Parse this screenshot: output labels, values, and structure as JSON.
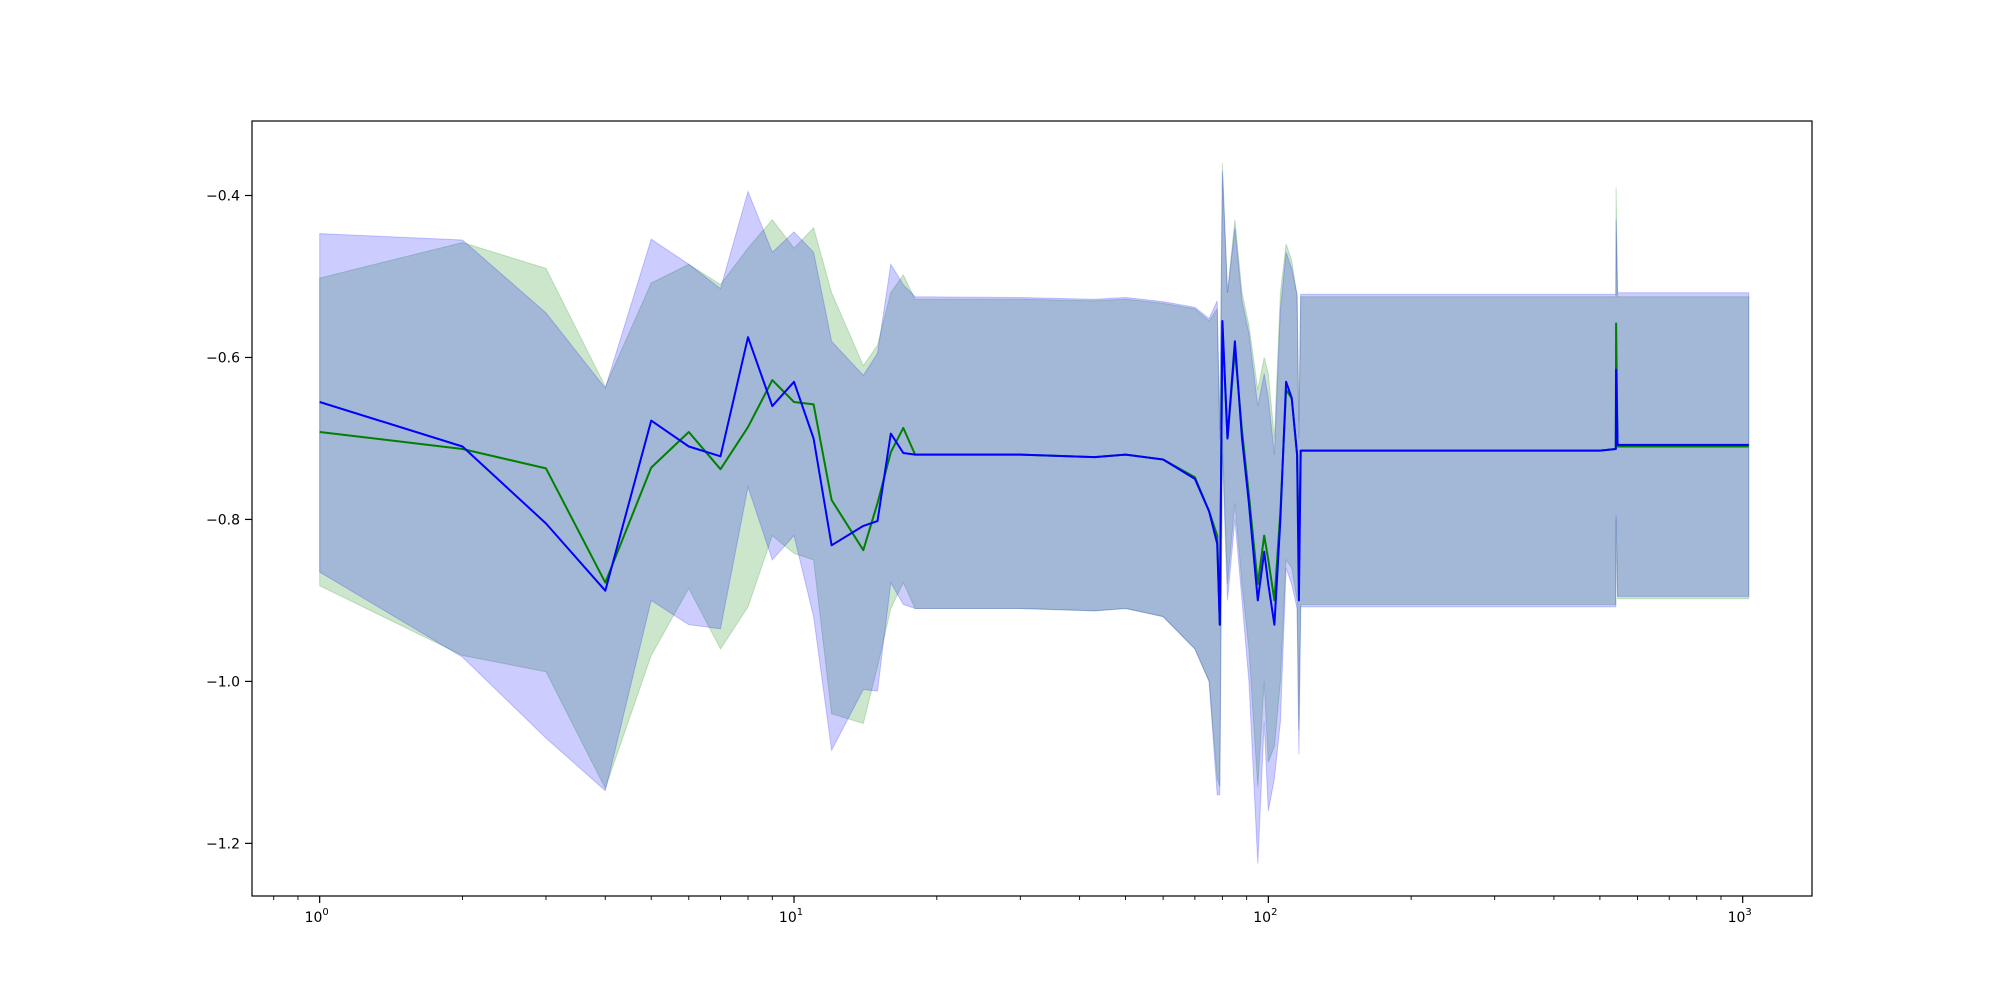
{
  "chart_data": {
    "type": "line",
    "title": "",
    "xlabel": "",
    "ylabel": "",
    "xscale": "log",
    "xlim": [
      0.72,
      1400
    ],
    "ylim": [
      -1.265,
      -0.308
    ],
    "grid": false,
    "legend": "none",
    "x_ticks": [
      {
        "base": "10",
        "exp": "0",
        "value": 1
      },
      {
        "base": "10",
        "exp": "1",
        "value": 10
      },
      {
        "base": "10",
        "exp": "2",
        "value": 100
      },
      {
        "base": "10",
        "exp": "3",
        "value": 1000
      }
    ],
    "y_ticks": [
      {
        "label": "−0.4",
        "value": -0.4
      },
      {
        "label": "−0.6",
        "value": -0.6
      },
      {
        "label": "−0.8",
        "value": -0.8
      },
      {
        "label": "−1.0",
        "value": -1.0
      },
      {
        "label": "−1.2",
        "value": -1.2
      }
    ],
    "series": [
      {
        "color": "#008000",
        "band_color": "#008000",
        "x": [
          1,
          2,
          3,
          4,
          5,
          6,
          7,
          8,
          9,
          10,
          11,
          12,
          14,
          15,
          16,
          17,
          18,
          30,
          43,
          50,
          60,
          70,
          75,
          78,
          79,
          80,
          82,
          85,
          88,
          91,
          95,
          98,
          100,
          103,
          106,
          109,
          112,
          115,
          116,
          117,
          500,
          540,
          541,
          545,
          1030
        ],
        "y": [
          -0.692,
          -0.713,
          -0.737,
          -0.878,
          -0.736,
          -0.692,
          -0.738,
          -0.686,
          -0.628,
          -0.655,
          -0.658,
          -0.776,
          -0.838,
          -0.78,
          -0.717,
          -0.687,
          -0.72,
          -0.72,
          -0.723,
          -0.72,
          -0.726,
          -0.748,
          -0.79,
          -0.82,
          -0.93,
          -0.56,
          -0.7,
          -0.59,
          -0.69,
          -0.77,
          -0.88,
          -0.82,
          -0.85,
          -0.9,
          -0.79,
          -0.64,
          -0.65,
          -0.72,
          -0.85,
          -0.715,
          -0.715,
          -0.713,
          -0.558,
          -0.71,
          -0.71
        ],
        "lower": [
          -0.882,
          -0.968,
          -0.988,
          -1.132,
          -0.968,
          -0.885,
          -0.96,
          -0.908,
          -0.82,
          -0.842,
          -0.85,
          -1.04,
          -1.052,
          -0.982,
          -0.91,
          -0.878,
          -0.91,
          -0.91,
          -0.913,
          -0.91,
          -0.92,
          -0.96,
          -1.0,
          -1.12,
          -1.13,
          -0.7,
          -0.88,
          -0.78,
          -0.88,
          -0.96,
          -1.13,
          -1.0,
          -1.1,
          -1.08,
          -1.0,
          -0.85,
          -0.86,
          -0.9,
          -1.06,
          -0.905,
          -0.905,
          -0.905,
          -0.8,
          -0.898,
          -0.898
        ],
        "upper": [
          -0.502,
          -0.458,
          -0.49,
          -0.636,
          -0.508,
          -0.485,
          -0.51,
          -0.465,
          -0.43,
          -0.465,
          -0.44,
          -0.52,
          -0.61,
          -0.585,
          -0.52,
          -0.498,
          -0.528,
          -0.528,
          -0.53,
          -0.528,
          -0.533,
          -0.54,
          -0.555,
          -0.54,
          -0.7,
          -0.36,
          -0.52,
          -0.43,
          -0.52,
          -0.56,
          -0.64,
          -0.6,
          -0.62,
          -0.7,
          -0.52,
          -0.46,
          -0.48,
          -0.525,
          -0.68,
          -0.525,
          -0.525,
          -0.525,
          -0.39,
          -0.525,
          -0.525
        ]
      },
      {
        "color": "#0000ff",
        "band_color": "#0000ff",
        "x": [
          1,
          2,
          3,
          4,
          5,
          6,
          7,
          8,
          9,
          10,
          11,
          12,
          14,
          15,
          16,
          17,
          18,
          30,
          43,
          50,
          60,
          70,
          75,
          78,
          79,
          80,
          82,
          85,
          88,
          91,
          95,
          98,
          100,
          103,
          106,
          109,
          112,
          115,
          116,
          117,
          500,
          540,
          541,
          545,
          1030
        ],
        "y": [
          -0.655,
          -0.71,
          -0.805,
          -0.888,
          -0.678,
          -0.71,
          -0.722,
          -0.575,
          -0.66,
          -0.63,
          -0.7,
          -0.832,
          -0.808,
          -0.802,
          -0.694,
          -0.718,
          -0.72,
          -0.72,
          -0.723,
          -0.72,
          -0.726,
          -0.75,
          -0.79,
          -0.83,
          -0.93,
          -0.555,
          -0.7,
          -0.58,
          -0.7,
          -0.78,
          -0.9,
          -0.84,
          -0.88,
          -0.93,
          -0.8,
          -0.63,
          -0.65,
          -0.72,
          -0.9,
          -0.715,
          -0.715,
          -0.713,
          -0.615,
          -0.708,
          -0.708
        ],
        "lower": [
          -0.865,
          -0.97,
          -1.07,
          -1.135,
          -0.9,
          -0.93,
          -0.935,
          -0.76,
          -0.85,
          -0.82,
          -0.92,
          -1.085,
          -1.01,
          -1.012,
          -0.878,
          -0.905,
          -0.91,
          -0.91,
          -0.913,
          -0.91,
          -0.92,
          -0.96,
          -1.0,
          -1.14,
          -1.14,
          -0.72,
          -0.9,
          -0.8,
          -0.9,
          -1.0,
          -1.225,
          -1.05,
          -1.16,
          -1.12,
          -1.05,
          -0.86,
          -0.88,
          -0.91,
          -1.09,
          -0.908,
          -0.908,
          -0.908,
          -0.795,
          -0.895,
          -0.895
        ],
        "upper": [
          -0.447,
          -0.455,
          -0.545,
          -0.638,
          -0.454,
          -0.485,
          -0.515,
          -0.395,
          -0.47,
          -0.445,
          -0.47,
          -0.58,
          -0.622,
          -0.595,
          -0.485,
          -0.51,
          -0.525,
          -0.526,
          -0.528,
          -0.526,
          -0.531,
          -0.538,
          -0.552,
          -0.53,
          -0.69,
          -0.37,
          -0.52,
          -0.44,
          -0.53,
          -0.57,
          -0.66,
          -0.62,
          -0.65,
          -0.72,
          -0.54,
          -0.47,
          -0.49,
          -0.522,
          -0.7,
          -0.522,
          -0.522,
          -0.522,
          -0.43,
          -0.52,
          -0.52
        ]
      }
    ]
  }
}
